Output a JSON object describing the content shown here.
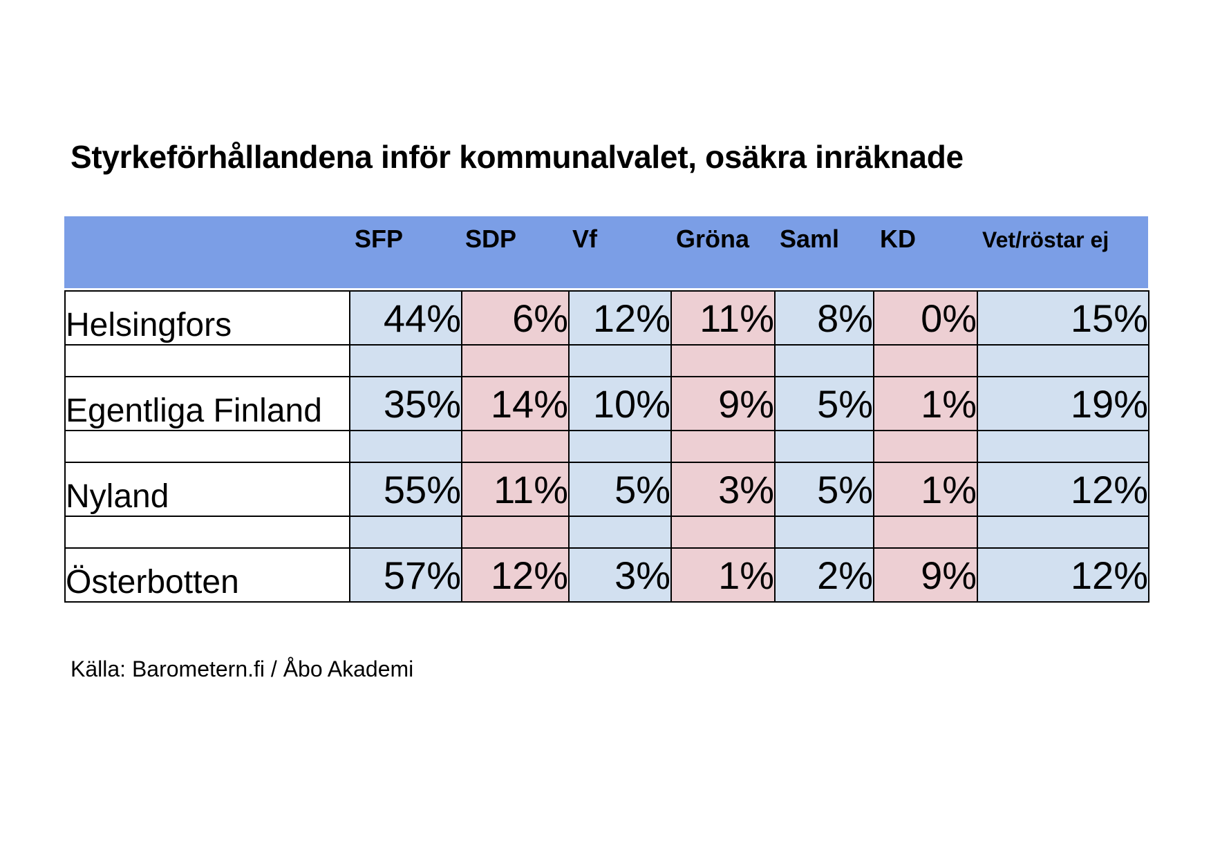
{
  "title": "Styrkeförhållandena inför kommunalvalet, osäkra inräknade",
  "source": "Källa: Barometern.fi / Åbo Akademi",
  "colors": {
    "header_band": "#7b9ee6",
    "cell_blue": "#d2e0f0",
    "cell_pink": "#edcfd3"
  },
  "table": {
    "columns": [
      "SFP",
      "SDP",
      "Vf",
      "Gröna",
      "Saml",
      "KD",
      "Vet/röstar ej"
    ],
    "rows": [
      {
        "region": "Helsingfors",
        "values": [
          "44%",
          "6%",
          "12%",
          "11%",
          "8%",
          "0%",
          "15%"
        ]
      },
      {
        "region": "Egentliga Finland",
        "values": [
          "35%",
          "14%",
          "10%",
          "9%",
          "5%",
          "1%",
          "19%"
        ]
      },
      {
        "region": "Nyland",
        "values": [
          "55%",
          "11%",
          "5%",
          "3%",
          "5%",
          "1%",
          "12%"
        ]
      },
      {
        "region": "Österbotten",
        "values": [
          "57%",
          "12%",
          "3%",
          "1%",
          "2%",
          "9%",
          "12%"
        ]
      }
    ]
  },
  "chart_data": {
    "type": "table",
    "title": "Styrkeförhållandena inför kommunalvalet, osäkra inräknade",
    "categories": [
      "Helsingfors",
      "Egentliga Finland",
      "Nyland",
      "Österbotten"
    ],
    "series": [
      {
        "name": "SFP",
        "values": [
          44,
          35,
          55,
          57
        ]
      },
      {
        "name": "SDP",
        "values": [
          6,
          14,
          11,
          12
        ]
      },
      {
        "name": "Vf",
        "values": [
          12,
          10,
          5,
          3
        ]
      },
      {
        "name": "Gröna",
        "values": [
          11,
          9,
          3,
          1
        ]
      },
      {
        "name": "Saml",
        "values": [
          8,
          5,
          5,
          2
        ]
      },
      {
        "name": "KD",
        "values": [
          0,
          1,
          1,
          9
        ]
      },
      {
        "name": "Vet/röstar ej",
        "values": [
          15,
          19,
          12,
          12
        ]
      }
    ],
    "unit": "%"
  }
}
